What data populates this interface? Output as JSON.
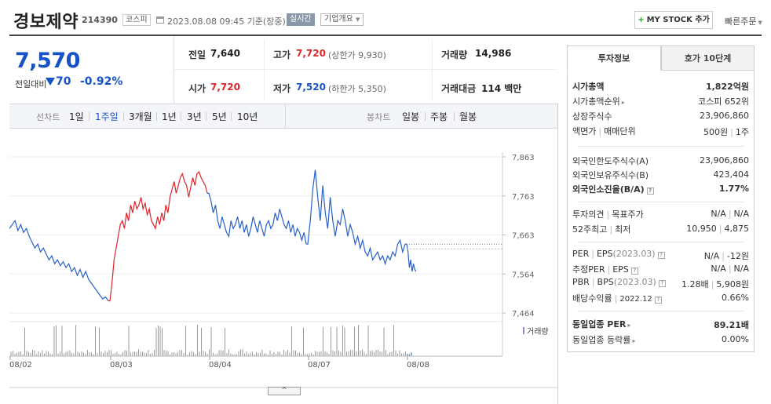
{
  "header": {
    "company_name": "경보제약",
    "code": "214390",
    "market": "코스피",
    "datetime": "2023.08.08 09:45",
    "basis": "기준(장중)",
    "realtime_label": "실시간",
    "corp_overview_label": "기업개요",
    "mystock_label": "MY STOCK 추가",
    "quick_order_label": "빠른주문"
  },
  "quote": {
    "price": "7,570",
    "change_label": "전일대비",
    "change": "70",
    "change_pct": "-0.92%",
    "prev_close_label": "전일",
    "prev_close": "7,640",
    "high_label": "고가",
    "high": "7,720",
    "upper_limit_label": "(상한가",
    "upper_limit": "9,930)",
    "volume_label": "거래량",
    "volume": "14,986",
    "open_label": "시가",
    "open": "7,720",
    "low_label": "저가",
    "low": "7,520",
    "lower_limit_label": "(하한가",
    "lower_limit": "5,350)",
    "amount_label": "거래대금",
    "amount": "114 백만"
  },
  "period_bar": {
    "line_label": "선차트",
    "periods": [
      "1일",
      "1주일",
      "3개월",
      "1년",
      "3년",
      "5년",
      "10년"
    ],
    "selected_period": "1주일",
    "candle_label": "봉차트",
    "candles": [
      "일봉",
      "주봉",
      "월봉"
    ]
  },
  "chart_data": {
    "type": "line",
    "y_ticks": [
      "7,863",
      "7,763",
      "7,663",
      "7,564",
      "7,464"
    ],
    "ylim": [
      7464,
      7863
    ],
    "x_ticks": [
      "08/02",
      "08/03",
      "08/04",
      "08/07",
      "08/08"
    ],
    "volume_label": "거래량",
    "prev_close_line": 7640,
    "colors": {
      "up": "#e0222b",
      "down": "#2760c8",
      "volume": "#9a9a9a"
    },
    "series": [
      {
        "day": "08/02",
        "direction": "down",
        "values": [
          7680,
          7690,
          7700,
          7675,
          7690,
          7670,
          7680,
          7660,
          7645,
          7630,
          7640,
          7620,
          7630,
          7615,
          7600,
          7610,
          7590,
          7600,
          7585,
          7595,
          7580,
          7590,
          7570,
          7580,
          7560,
          7575,
          7555,
          7570,
          7550,
          7540,
          7530,
          7520,
          7510,
          7500,
          7505,
          7495
        ]
      },
      {
        "day": "08/03",
        "direction": "up",
        "values": [
          7495,
          7540,
          7600,
          7630,
          7660,
          7690,
          7700,
          7680,
          7720,
          7700,
          7740,
          7720,
          7750,
          7730,
          7740,
          7760,
          7730,
          7745,
          7715,
          7730,
          7700,
          7690,
          7680,
          7710,
          7690,
          7720,
          7700,
          7740,
          7720,
          7760,
          7780,
          7800,
          7770,
          7790,
          7810,
          7820,
          7800,
          7790,
          7760,
          7785,
          7810,
          7790,
          7820,
          7825,
          7810,
          7800,
          7790,
          7770
        ]
      },
      {
        "day": "08/04",
        "direction": "down",
        "values": [
          7770,
          7750,
          7720,
          7740,
          7700,
          7680,
          7710,
          7690,
          7670,
          7660,
          7700,
          7680,
          7690,
          7710,
          7680,
          7700,
          7670,
          7690,
          7660,
          7680,
          7710,
          7690,
          7670,
          7700,
          7680,
          7660,
          7690,
          7700,
          7680,
          7690,
          7720,
          7700,
          7730,
          7710,
          7690,
          7680,
          7700,
          7670,
          7690,
          7660,
          7680,
          7670,
          7650,
          7670,
          7640
        ]
      },
      {
        "day": "08/07",
        "direction": "down",
        "values": [
          7640,
          7700,
          7780,
          7830,
          7760,
          7700,
          7790,
          7720,
          7680,
          7760,
          7700,
          7660,
          7700,
          7690,
          7730,
          7700,
          7660,
          7690,
          7670,
          7640,
          7660,
          7630,
          7650,
          7620,
          7610,
          7630,
          7600,
          7610,
          7620,
          7600,
          7610,
          7590,
          7610,
          7600,
          7620,
          7610,
          7640,
          7650,
          7620,
          7640
        ]
      },
      {
        "day": "08/08",
        "direction": "down",
        "values": [
          7640,
          7620,
          7580,
          7600,
          7570,
          7590,
          7575,
          7570
        ]
      }
    ]
  },
  "right_panel": {
    "tab_invest": "투자정보",
    "tab_ask": "호가 10단계",
    "s1": [
      {
        "label": "시가총액",
        "value": "1,822억원",
        "bold": true
      },
      {
        "label": "시가총액순위",
        "value": "코스피 652위"
      },
      {
        "label": "상장주식수",
        "value": "23,906,860"
      },
      {
        "label": "액면가",
        "label2": "매매단위",
        "value": "500원",
        "value2": "1주"
      }
    ],
    "s2": [
      {
        "label": "외국인한도주식수(A)",
        "value": "23,906,860"
      },
      {
        "label": "외국인보유주식수(B)",
        "value": "423,404"
      },
      {
        "label": "외국인소진율(B/A)",
        "value": "1.77%",
        "bold": true
      }
    ],
    "s3": [
      {
        "label": "투자의견",
        "label2": "목표주가",
        "value": "N/A",
        "value2": "N/A"
      },
      {
        "label": "52주최고",
        "label2": "최저",
        "value": "10,950",
        "value2": "4,875"
      }
    ],
    "s4": [
      {
        "label": "PER",
        "label2": "EPS",
        "label2_suffix": "(2023.03)",
        "value": "N/A",
        "value2": "-12원"
      },
      {
        "label": "추정PER",
        "label2": "EPS",
        "value": "N/A",
        "value2": "N/A"
      },
      {
        "label": "PBR",
        "label2": "BPS",
        "label2_suffix": "(2023.03)",
        "value": "1.28배",
        "value2": "5,908원"
      },
      {
        "label": "배당수익률",
        "label_suffix": "2022.12",
        "value": "0.66%"
      }
    ],
    "s5": [
      {
        "label": "동일업종 PER",
        "value": "89.21배",
        "bold": true
      },
      {
        "label": "동일업종 등락률",
        "value": "0.00%"
      }
    ]
  }
}
